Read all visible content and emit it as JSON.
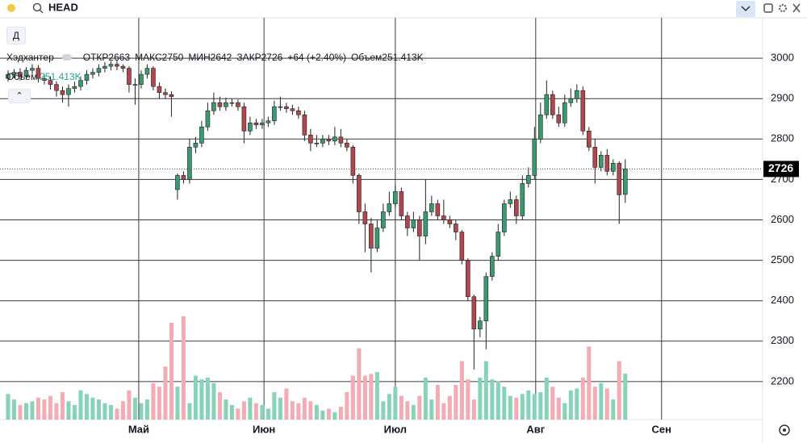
{
  "toolbar": {
    "symbol": "HEAD",
    "interval": "Д"
  },
  "chart_data": {
    "type": "candlestick",
    "name": "Хэдхантер",
    "open_label": "ОТКР",
    "high_label": "МАКС",
    "low_label": "МИН",
    "close_label": "ЗАКР",
    "change_label": "+64 (+2.40%)",
    "volume_label": "Объем",
    "last_volume_label": "251.413K",
    "open": [
      2950,
      2960,
      2965,
      2955,
      2970,
      2975,
      2950,
      2945,
      2935,
      2920,
      2910,
      2925,
      2930,
      2945,
      2960,
      2965,
      2975,
      2980,
      2985,
      2980,
      2975,
      2935,
      2935,
      2960,
      2975,
      2930,
      2915,
      2910,
      2675,
      2710,
      2700,
      2780,
      2790,
      2830,
      2870,
      2890,
      2880,
      2890,
      2890,
      2880,
      2820,
      2840,
      2835,
      2840,
      2845,
      2880,
      2880,
      2875,
      2870,
      2860,
      2810,
      2790,
      2790,
      2800,
      2795,
      2805,
      2790,
      2780,
      2710,
      2620,
      2590,
      2530,
      2580,
      2620,
      2640,
      2670,
      2610,
      2580,
      2600,
      2560,
      2620,
      2640,
      2610,
      2600,
      2590,
      2570,
      2500,
      2410,
      2330,
      2350,
      2460,
      2510,
      2570,
      2640,
      2650,
      2610,
      2690,
      2710,
      2800,
      2860,
      2910,
      2860,
      2840,
      2890,
      2900,
      2920,
      2820,
      2780,
      2730,
      2760,
      2720,
      2740,
      2663
    ],
    "high": [
      2970,
      2973,
      2975,
      2978,
      2985,
      2983,
      2960,
      2955,
      2943,
      2930,
      2935,
      2942,
      2955,
      2970,
      2975,
      2985,
      2990,
      2993,
      2995,
      2985,
      2980,
      2950,
      2970,
      2985,
      2980,
      2940,
      2925,
      2918,
      2715,
      2720,
      2800,
      2805,
      2845,
      2890,
      2915,
      2905,
      2902,
      2900,
      2898,
      2890,
      2855,
      2850,
      2850,
      2855,
      2895,
      2905,
      2890,
      2885,
      2880,
      2870,
      2825,
      2810,
      2810,
      2810,
      2830,
      2825,
      2800,
      2785,
      2715,
      2640,
      2605,
      2600,
      2640,
      2670,
      2685,
      2680,
      2620,
      2620,
      2610,
      2700,
      2660,
      2650,
      2650,
      2610,
      2600,
      2575,
      2505,
      2415,
      2360,
      2470,
      2520,
      2590,
      2650,
      2670,
      2660,
      2710,
      2730,
      2830,
      2890,
      2945,
      2920,
      2880,
      2910,
      2925,
      2935,
      2930,
      2830,
      2800,
      2770,
      2775,
      2750,
      2745,
      2750
    ],
    "low": [
      2942,
      2950,
      2945,
      2947,
      2960,
      2940,
      2935,
      2923,
      2905,
      2890,
      2880,
      2915,
      2920,
      2935,
      2950,
      2955,
      2965,
      2970,
      2970,
      2965,
      2915,
      2885,
      2925,
      2950,
      2920,
      2900,
      2900,
      2855,
      2650,
      2690,
      2690,
      2765,
      2780,
      2820,
      2860,
      2870,
      2870,
      2880,
      2870,
      2790,
      2810,
      2825,
      2825,
      2830,
      2835,
      2870,
      2865,
      2860,
      2850,
      2795,
      2770,
      2780,
      2780,
      2785,
      2785,
      2780,
      2770,
      2690,
      2590,
      2520,
      2470,
      2520,
      2570,
      2610,
      2630,
      2600,
      2560,
      2570,
      2500,
      2540,
      2610,
      2600,
      2590,
      2580,
      2550,
      2490,
      2400,
      2230,
      2310,
      2280,
      2450,
      2500,
      2560,
      2630,
      2590,
      2600,
      2680,
      2700,
      2790,
      2850,
      2850,
      2830,
      2830,
      2880,
      2890,
      2810,
      2770,
      2690,
      2720,
      2710,
      2710,
      2590,
      2642
    ],
    "close": [
      2960,
      2965,
      2955,
      2970,
      2975,
      2950,
      2945,
      2935,
      2920,
      2910,
      2925,
      2930,
      2945,
      2960,
      2965,
      2975,
      2980,
      2985,
      2980,
      2975,
      2935,
      2935,
      2960,
      2975,
      2930,
      2915,
      2910,
      2905,
      2710,
      2700,
      2780,
      2790,
      2830,
      2870,
      2890,
      2880,
      2890,
      2890,
      2880,
      2820,
      2840,
      2835,
      2840,
      2845,
      2880,
      2880,
      2875,
      2870,
      2860,
      2810,
      2790,
      2790,
      2800,
      2795,
      2805,
      2790,
      2780,
      2710,
      2620,
      2590,
      2530,
      2580,
      2620,
      2640,
      2670,
      2610,
      2580,
      2600,
      2560,
      2620,
      2640,
      2610,
      2600,
      2590,
      2570,
      2500,
      2410,
      2330,
      2350,
      2460,
      2510,
      2570,
      2640,
      2650,
      2610,
      2690,
      2710,
      2800,
      2860,
      2910,
      2860,
      2840,
      2890,
      2900,
      2920,
      2820,
      2780,
      2730,
      2760,
      2720,
      2740,
      2662,
      2726
    ],
    "volume": [
      140000,
      110000,
      80000,
      90000,
      100000,
      120000,
      110000,
      130000,
      90000,
      150000,
      100000,
      80000,
      160000,
      140000,
      120000,
      110000,
      90000,
      80000,
      60000,
      100000,
      160000,
      120000,
      90000,
      110000,
      200000,
      180000,
      290000,
      530000,
      180000,
      565000,
      90000,
      240000,
      220000,
      230000,
      200000,
      150000,
      110000,
      80000,
      60000,
      100000,
      120000,
      90000,
      80000,
      60000,
      150000,
      120000,
      170000,
      100000,
      90000,
      120000,
      100000,
      80000,
      50000,
      60000,
      40000,
      70000,
      150000,
      240000,
      390000,
      240000,
      250000,
      260000,
      100000,
      140000,
      180000,
      130000,
      100000,
      80000,
      130000,
      230000,
      110000,
      190000,
      90000,
      130000,
      190000,
      320000,
      220000,
      110000,
      230000,
      320000,
      220000,
      210000,
      180000,
      130000,
      120000,
      140000,
      160000,
      140000,
      150000,
      230000,
      180000,
      120000,
      90000,
      160000,
      170000,
      230000,
      400000,
      180000,
      200000,
      170000,
      110000,
      320000,
      251413
    ],
    "up_color": "#3a9a6f",
    "down_color": "#b0474f",
    "volume_up_color": "#86d3b8",
    "volume_down_color": "#f3abb4",
    "ylim": [
      2106,
      3100
    ],
    "yticks": [
      2200,
      2300,
      2400,
      2500,
      2600,
      2700,
      2800,
      2900,
      3000
    ],
    "xlim": [
      -1.33,
      124.7
    ],
    "xticks": [
      {
        "value": 21.6,
        "label": "Май"
      },
      {
        "value": 42.3,
        "label": "Июн"
      },
      {
        "value": 64,
        "label": "Июл"
      },
      {
        "value": 87.2,
        "label": "Авг"
      },
      {
        "value": 108,
        "label": "Сен"
      }
    ],
    "grid": true
  }
}
